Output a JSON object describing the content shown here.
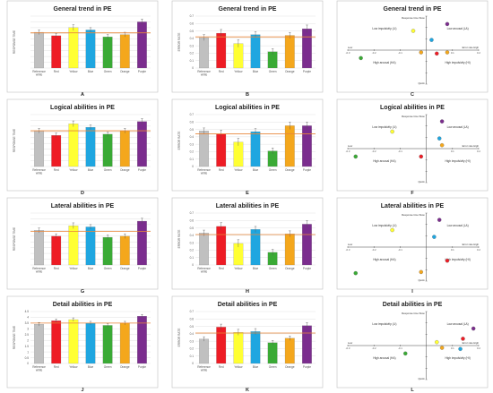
{
  "figure": {
    "bg": "#ffffff",
    "ref_line_color": "#e8863a",
    "grid_color": "#d9d9d9",
    "frame_color": "#bfbfbf"
  },
  "chart_data": [
    {
      "type": "bar",
      "panel": "A",
      "title": "General trend in PE",
      "ylabel": "RESPONSE TIME",
      "ylim": [
        0,
        4.5
      ],
      "ytick_step": 0.5,
      "yticks_shown": false,
      "categories": [
        "Reference white",
        "Red",
        "Yellow",
        "Blue",
        "Green",
        "Orange",
        "Purple"
      ],
      "values": [
        3.1,
        2.8,
        3.5,
        3.3,
        2.7,
        2.9,
        4.0
      ],
      "errors": [
        0.2,
        0.2,
        0.25,
        0.2,
        0.2,
        0.2,
        0.25
      ],
      "reference": 3.05,
      "colors": [
        "#c0c0c0",
        "#ee1c25",
        "#ffff33",
        "#1fa6e0",
        "#3aaa35",
        "#f4a71c",
        "#7b2d8e"
      ]
    },
    {
      "type": "bar",
      "panel": "B",
      "title": "General trend in PE",
      "ylabel": "ERROR RATE",
      "ylim": [
        0,
        0.7
      ],
      "ytick_step": 0.1,
      "yticks_shown": true,
      "categories": [
        "Reference white",
        "Red",
        "Yellow",
        "Blue",
        "Green",
        "Orange",
        "Purple"
      ],
      "values": [
        0.41,
        0.47,
        0.33,
        0.45,
        0.22,
        0.44,
        0.53
      ],
      "errors": [
        0.04,
        0.05,
        0.05,
        0.04,
        0.04,
        0.04,
        0.05
      ],
      "reference": 0.42,
      "colors": [
        "#c0c0c0",
        "#ee1c25",
        "#ffff33",
        "#1fa6e0",
        "#3aaa35",
        "#f4a71c",
        "#7b2d8e"
      ]
    },
    {
      "type": "scatter",
      "panel": "C",
      "title": "General trend in PE",
      "xlim": [
        -0.3,
        0.2
      ],
      "ylim": [
        -0.3,
        0.3
      ],
      "points": [
        {
          "x": 0.08,
          "y": 0.23,
          "color": "#7b2d8e"
        },
        {
          "x": -0.05,
          "y": 0.17,
          "color": "#ffff33"
        },
        {
          "x": 0.02,
          "y": 0.09,
          "color": "#1fa6e0"
        },
        {
          "x": -0.02,
          "y": -0.02,
          "color": "#f4a71c"
        },
        {
          "x": 0.04,
          "y": -0.03,
          "color": "#ee1c25"
        },
        {
          "x": 0.08,
          "y": -0.02,
          "color": "#f4a71c"
        },
        {
          "x": -0.25,
          "y": -0.07,
          "color": "#3aaa35"
        }
      ],
      "quadrants": {
        "tl": "Low impulsivity (LI)",
        "tr": "Low arousal (LA)",
        "bl": "High arousal (HA)",
        "br": "High impulsivity (HI)"
      },
      "y_axis_label": "Response time Slow",
      "x_axis_label": "Error rate High",
      "x_axis_low": "Low",
      "y_axis_low": "Quick"
    },
    {
      "type": "bar",
      "panel": "D",
      "title": "Logical abilities in PE",
      "ylabel": "RESPONSE TIME",
      "ylim": [
        0,
        4.5
      ],
      "ytick_step": 0.5,
      "yticks_shown": false,
      "categories": [
        "Reference white",
        "Red",
        "Yellow",
        "Blue",
        "Green",
        "Orange",
        "Purple"
      ],
      "values": [
        3.1,
        2.7,
        3.7,
        3.4,
        2.8,
        3.1,
        3.9
      ],
      "errors": [
        0.2,
        0.2,
        0.25,
        0.2,
        0.2,
        0.2,
        0.25
      ],
      "reference": 3.1,
      "colors": [
        "#c0c0c0",
        "#ee1c25",
        "#ffff33",
        "#1fa6e0",
        "#3aaa35",
        "#f4a71c",
        "#7b2d8e"
      ]
    },
    {
      "type": "bar",
      "panel": "E",
      "title": "Logical abilities in PE",
      "ylabel": "ERROR RATE",
      "ylim": [
        0,
        0.7
      ],
      "ytick_step": 0.1,
      "yticks_shown": true,
      "categories": [
        "Reference white",
        "Red",
        "Yellow",
        "Blue",
        "Green",
        "Orange",
        "Purple"
      ],
      "values": [
        0.48,
        0.44,
        0.33,
        0.47,
        0.21,
        0.55,
        0.55
      ],
      "errors": [
        0.04,
        0.05,
        0.05,
        0.04,
        0.04,
        0.05,
        0.05
      ],
      "reference": 0.44,
      "colors": [
        "#c0c0c0",
        "#ee1c25",
        "#ffff33",
        "#1fa6e0",
        "#3aaa35",
        "#f4a71c",
        "#7b2d8e"
      ]
    },
    {
      "type": "scatter",
      "panel": "F",
      "title": "Logical abilities in PE",
      "xlim": [
        -0.3,
        0.2
      ],
      "ylim": [
        -0.3,
        0.3
      ],
      "points": [
        {
          "x": 0.06,
          "y": 0.24,
          "color": "#7b2d8e"
        },
        {
          "x": -0.13,
          "y": 0.15,
          "color": "#ffff33"
        },
        {
          "x": 0.05,
          "y": 0.09,
          "color": "#1fa6e0"
        },
        {
          "x": 0.06,
          "y": 0.03,
          "color": "#f4a71c"
        },
        {
          "x": -0.02,
          "y": -0.07,
          "color": "#ee1c25"
        },
        {
          "x": -0.27,
          "y": -0.07,
          "color": "#3aaa35"
        }
      ],
      "quadrants": {
        "tl": "Low impulsivity (LI)",
        "tr": "Low arousal (LA)",
        "bl": "High arousal (HA)",
        "br": "High impulsivity (HI)"
      },
      "y_axis_label": "Response time Slow",
      "x_axis_label": "Error rate High",
      "x_axis_low": "Low",
      "y_axis_low": "Quick"
    },
    {
      "type": "bar",
      "panel": "G",
      "title": "Lateral abilities in PE",
      "ylabel": "RESPONSE TIME",
      "ylim": [
        0,
        4.5
      ],
      "ytick_step": 0.5,
      "yticks_shown": false,
      "categories": [
        "Reference white",
        "Red",
        "Yellow",
        "Blue",
        "Green",
        "Orange",
        "Purple"
      ],
      "values": [
        3.0,
        2.5,
        3.4,
        3.3,
        2.4,
        2.5,
        3.8
      ],
      "errors": [
        0.2,
        0.2,
        0.25,
        0.2,
        0.2,
        0.2,
        0.25
      ],
      "reference": 2.9,
      "colors": [
        "#c0c0c0",
        "#ee1c25",
        "#ffff33",
        "#1fa6e0",
        "#3aaa35",
        "#f4a71c",
        "#7b2d8e"
      ]
    },
    {
      "type": "bar",
      "panel": "H",
      "title": "Lateral abilities in PE",
      "ylabel": "ERROR RATE",
      "ylim": [
        0,
        0.7
      ],
      "ytick_step": 0.1,
      "yticks_shown": true,
      "categories": [
        "Reference white",
        "Red",
        "Yellow",
        "Blue",
        "Green",
        "Orange",
        "Purple"
      ],
      "values": [
        0.43,
        0.52,
        0.29,
        0.48,
        0.17,
        0.42,
        0.55
      ],
      "errors": [
        0.04,
        0.05,
        0.05,
        0.04,
        0.04,
        0.04,
        0.05
      ],
      "reference": 0.41,
      "colors": [
        "#c0c0c0",
        "#ee1c25",
        "#ffff33",
        "#1fa6e0",
        "#3aaa35",
        "#f4a71c",
        "#7b2d8e"
      ]
    },
    {
      "type": "scatter",
      "panel": "I",
      "title": "Lateral abilities in PE",
      "xlim": [
        -0.3,
        0.2
      ],
      "ylim": [
        -0.3,
        0.3
      ],
      "points": [
        {
          "x": 0.05,
          "y": 0.24,
          "color": "#7b2d8e"
        },
        {
          "x": -0.13,
          "y": 0.15,
          "color": "#ffff33"
        },
        {
          "x": 0.03,
          "y": 0.09,
          "color": "#1fa6e0"
        },
        {
          "x": 0.08,
          "y": -0.12,
          "color": "#ee1c25"
        },
        {
          "x": -0.02,
          "y": -0.22,
          "color": "#f4a71c"
        },
        {
          "x": -0.27,
          "y": -0.23,
          "color": "#3aaa35"
        }
      ],
      "quadrants": {
        "tl": "Low impulsivity (LI)",
        "tr": "Low arousal (LA)",
        "bl": "High arousal (HA)",
        "br": "High impulsivity (HI)"
      },
      "y_axis_label": "Response time Slow",
      "x_axis_label": "Error rate High",
      "x_axis_low": "Low",
      "y_axis_low": "Quick"
    },
    {
      "type": "bar",
      "panel": "J",
      "title": "Detail abilities in PE",
      "ylabel": "RESPONSE TIME",
      "ylim": [
        0,
        4.5
      ],
      "ytick_step": 0.5,
      "yticks_shown": true,
      "categories": [
        "Reference white",
        "Red",
        "Yellow",
        "Blue",
        "Green",
        "Orange",
        "Purple"
      ],
      "values": [
        3.4,
        3.7,
        3.8,
        3.5,
        3.3,
        3.5,
        4.1
      ],
      "errors": [
        0.15,
        0.15,
        0.15,
        0.15,
        0.15,
        0.15,
        0.15
      ],
      "reference": 3.5,
      "colors": [
        "#c0c0c0",
        "#ee1c25",
        "#ffff33",
        "#1fa6e0",
        "#3aaa35",
        "#f4a71c",
        "#7b2d8e"
      ]
    },
    {
      "type": "bar",
      "panel": "K",
      "title": "Detail abilities in PE",
      "ylabel": "ERROR RATE",
      "ylim": [
        0,
        0.7
      ],
      "ytick_step": 0.1,
      "yticks_shown": true,
      "categories": [
        "Reference white",
        "Red",
        "Yellow",
        "Blue",
        "Green",
        "Orange",
        "Purple"
      ],
      "values": [
        0.33,
        0.49,
        0.42,
        0.43,
        0.28,
        0.34,
        0.51
      ],
      "errors": [
        0.03,
        0.04,
        0.04,
        0.04,
        0.03,
        0.03,
        0.04
      ],
      "reference": 0.41,
      "colors": [
        "#c0c0c0",
        "#ee1c25",
        "#ffff33",
        "#1fa6e0",
        "#3aaa35",
        "#f4a71c",
        "#7b2d8e"
      ]
    },
    {
      "type": "scatter",
      "panel": "L",
      "title": "Detail abilities in PE",
      "xlim": [
        -0.3,
        0.2
      ],
      "ylim": [
        -0.3,
        0.3
      ],
      "points": [
        {
          "x": 0.18,
          "y": 0.15,
          "color": "#7b2d8e"
        },
        {
          "x": 0.14,
          "y": 0.06,
          "color": "#ee1c25"
        },
        {
          "x": 0.04,
          "y": 0.03,
          "color": "#ffff33"
        },
        {
          "x": 0.06,
          "y": -0.02,
          "color": "#f4a71c"
        },
        {
          "x": 0.13,
          "y": -0.03,
          "color": "#1fa6e0"
        },
        {
          "x": -0.08,
          "y": -0.07,
          "color": "#3aaa35"
        }
      ],
      "quadrants": {
        "tl": "Low impulsivity (LI)",
        "tr": "Low arousal (LA)",
        "bl": "High arousal (HA)",
        "br": "High impulsivity (HI)"
      },
      "y_axis_label": "Response time Slow",
      "x_axis_label": "Error rate High",
      "x_axis_low": "Low",
      "y_axis_low": "Quick"
    }
  ]
}
